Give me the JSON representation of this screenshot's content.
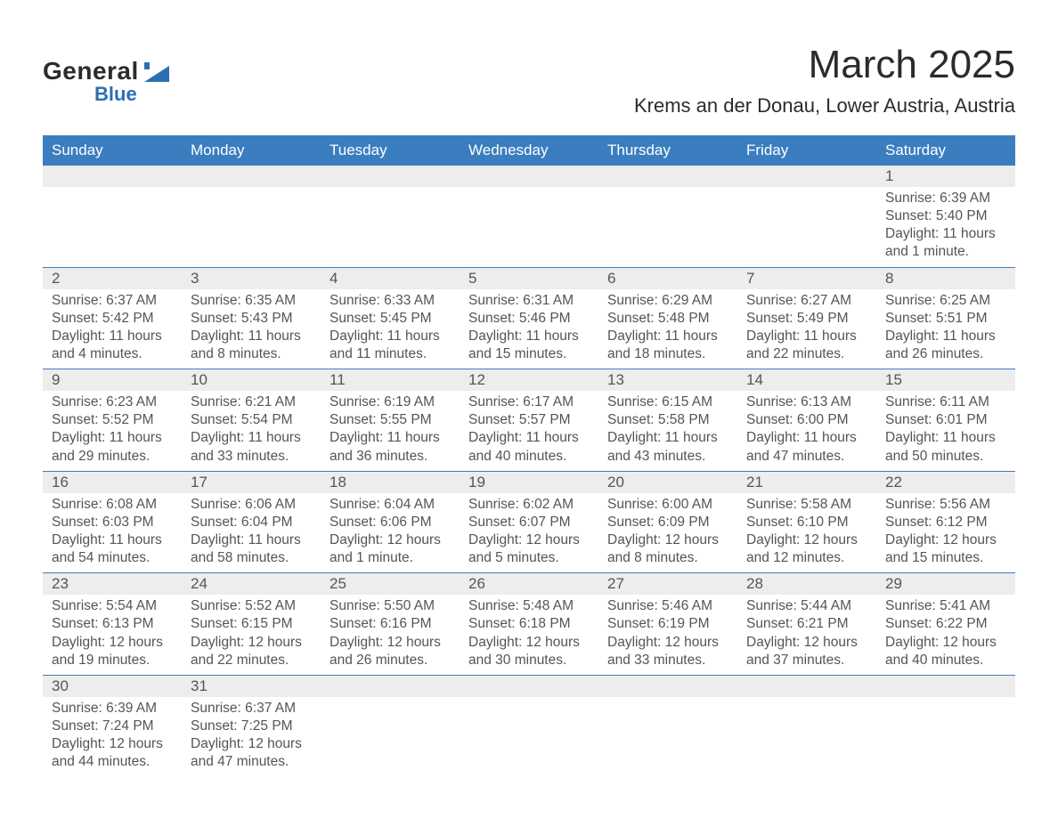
{
  "logo": {
    "text1": "General",
    "text2": "Blue",
    "shape_color": "#2c6fb3"
  },
  "title": "March 2025",
  "location": "Krems an der Donau, Lower Austria, Austria",
  "colors": {
    "header_bg": "#3b7ebf",
    "header_text": "#ffffff",
    "daynum_bg": "#ededed",
    "row_border": "#3b7ebf",
    "body_text": "#555555",
    "page_bg": "#ffffff"
  },
  "day_headers": [
    "Sunday",
    "Monday",
    "Tuesday",
    "Wednesday",
    "Thursday",
    "Friday",
    "Saturday"
  ],
  "weeks": [
    [
      null,
      null,
      null,
      null,
      null,
      null,
      {
        "n": "1",
        "sunrise": "Sunrise: 6:39 AM",
        "sunset": "Sunset: 5:40 PM",
        "dl1": "Daylight: 11 hours",
        "dl2": "and 1 minute."
      }
    ],
    [
      {
        "n": "2",
        "sunrise": "Sunrise: 6:37 AM",
        "sunset": "Sunset: 5:42 PM",
        "dl1": "Daylight: 11 hours",
        "dl2": "and 4 minutes."
      },
      {
        "n": "3",
        "sunrise": "Sunrise: 6:35 AM",
        "sunset": "Sunset: 5:43 PM",
        "dl1": "Daylight: 11 hours",
        "dl2": "and 8 minutes."
      },
      {
        "n": "4",
        "sunrise": "Sunrise: 6:33 AM",
        "sunset": "Sunset: 5:45 PM",
        "dl1": "Daylight: 11 hours",
        "dl2": "and 11 minutes."
      },
      {
        "n": "5",
        "sunrise": "Sunrise: 6:31 AM",
        "sunset": "Sunset: 5:46 PM",
        "dl1": "Daylight: 11 hours",
        "dl2": "and 15 minutes."
      },
      {
        "n": "6",
        "sunrise": "Sunrise: 6:29 AM",
        "sunset": "Sunset: 5:48 PM",
        "dl1": "Daylight: 11 hours",
        "dl2": "and 18 minutes."
      },
      {
        "n": "7",
        "sunrise": "Sunrise: 6:27 AM",
        "sunset": "Sunset: 5:49 PM",
        "dl1": "Daylight: 11 hours",
        "dl2": "and 22 minutes."
      },
      {
        "n": "8",
        "sunrise": "Sunrise: 6:25 AM",
        "sunset": "Sunset: 5:51 PM",
        "dl1": "Daylight: 11 hours",
        "dl2": "and 26 minutes."
      }
    ],
    [
      {
        "n": "9",
        "sunrise": "Sunrise: 6:23 AM",
        "sunset": "Sunset: 5:52 PM",
        "dl1": "Daylight: 11 hours",
        "dl2": "and 29 minutes."
      },
      {
        "n": "10",
        "sunrise": "Sunrise: 6:21 AM",
        "sunset": "Sunset: 5:54 PM",
        "dl1": "Daylight: 11 hours",
        "dl2": "and 33 minutes."
      },
      {
        "n": "11",
        "sunrise": "Sunrise: 6:19 AM",
        "sunset": "Sunset: 5:55 PM",
        "dl1": "Daylight: 11 hours",
        "dl2": "and 36 minutes."
      },
      {
        "n": "12",
        "sunrise": "Sunrise: 6:17 AM",
        "sunset": "Sunset: 5:57 PM",
        "dl1": "Daylight: 11 hours",
        "dl2": "and 40 minutes."
      },
      {
        "n": "13",
        "sunrise": "Sunrise: 6:15 AM",
        "sunset": "Sunset: 5:58 PM",
        "dl1": "Daylight: 11 hours",
        "dl2": "and 43 minutes."
      },
      {
        "n": "14",
        "sunrise": "Sunrise: 6:13 AM",
        "sunset": "Sunset: 6:00 PM",
        "dl1": "Daylight: 11 hours",
        "dl2": "and 47 minutes."
      },
      {
        "n": "15",
        "sunrise": "Sunrise: 6:11 AM",
        "sunset": "Sunset: 6:01 PM",
        "dl1": "Daylight: 11 hours",
        "dl2": "and 50 minutes."
      }
    ],
    [
      {
        "n": "16",
        "sunrise": "Sunrise: 6:08 AM",
        "sunset": "Sunset: 6:03 PM",
        "dl1": "Daylight: 11 hours",
        "dl2": "and 54 minutes."
      },
      {
        "n": "17",
        "sunrise": "Sunrise: 6:06 AM",
        "sunset": "Sunset: 6:04 PM",
        "dl1": "Daylight: 11 hours",
        "dl2": "and 58 minutes."
      },
      {
        "n": "18",
        "sunrise": "Sunrise: 6:04 AM",
        "sunset": "Sunset: 6:06 PM",
        "dl1": "Daylight: 12 hours",
        "dl2": "and 1 minute."
      },
      {
        "n": "19",
        "sunrise": "Sunrise: 6:02 AM",
        "sunset": "Sunset: 6:07 PM",
        "dl1": "Daylight: 12 hours",
        "dl2": "and 5 minutes."
      },
      {
        "n": "20",
        "sunrise": "Sunrise: 6:00 AM",
        "sunset": "Sunset: 6:09 PM",
        "dl1": "Daylight: 12 hours",
        "dl2": "and 8 minutes."
      },
      {
        "n": "21",
        "sunrise": "Sunrise: 5:58 AM",
        "sunset": "Sunset: 6:10 PM",
        "dl1": "Daylight: 12 hours",
        "dl2": "and 12 minutes."
      },
      {
        "n": "22",
        "sunrise": "Sunrise: 5:56 AM",
        "sunset": "Sunset: 6:12 PM",
        "dl1": "Daylight: 12 hours",
        "dl2": "and 15 minutes."
      }
    ],
    [
      {
        "n": "23",
        "sunrise": "Sunrise: 5:54 AM",
        "sunset": "Sunset: 6:13 PM",
        "dl1": "Daylight: 12 hours",
        "dl2": "and 19 minutes."
      },
      {
        "n": "24",
        "sunrise": "Sunrise: 5:52 AM",
        "sunset": "Sunset: 6:15 PM",
        "dl1": "Daylight: 12 hours",
        "dl2": "and 22 minutes."
      },
      {
        "n": "25",
        "sunrise": "Sunrise: 5:50 AM",
        "sunset": "Sunset: 6:16 PM",
        "dl1": "Daylight: 12 hours",
        "dl2": "and 26 minutes."
      },
      {
        "n": "26",
        "sunrise": "Sunrise: 5:48 AM",
        "sunset": "Sunset: 6:18 PM",
        "dl1": "Daylight: 12 hours",
        "dl2": "and 30 minutes."
      },
      {
        "n": "27",
        "sunrise": "Sunrise: 5:46 AM",
        "sunset": "Sunset: 6:19 PM",
        "dl1": "Daylight: 12 hours",
        "dl2": "and 33 minutes."
      },
      {
        "n": "28",
        "sunrise": "Sunrise: 5:44 AM",
        "sunset": "Sunset: 6:21 PM",
        "dl1": "Daylight: 12 hours",
        "dl2": "and 37 minutes."
      },
      {
        "n": "29",
        "sunrise": "Sunrise: 5:41 AM",
        "sunset": "Sunset: 6:22 PM",
        "dl1": "Daylight: 12 hours",
        "dl2": "and 40 minutes."
      }
    ],
    [
      {
        "n": "30",
        "sunrise": "Sunrise: 6:39 AM",
        "sunset": "Sunset: 7:24 PM",
        "dl1": "Daylight: 12 hours",
        "dl2": "and 44 minutes."
      },
      {
        "n": "31",
        "sunrise": "Sunrise: 6:37 AM",
        "sunset": "Sunset: 7:25 PM",
        "dl1": "Daylight: 12 hours",
        "dl2": "and 47 minutes."
      },
      null,
      null,
      null,
      null,
      null
    ]
  ]
}
